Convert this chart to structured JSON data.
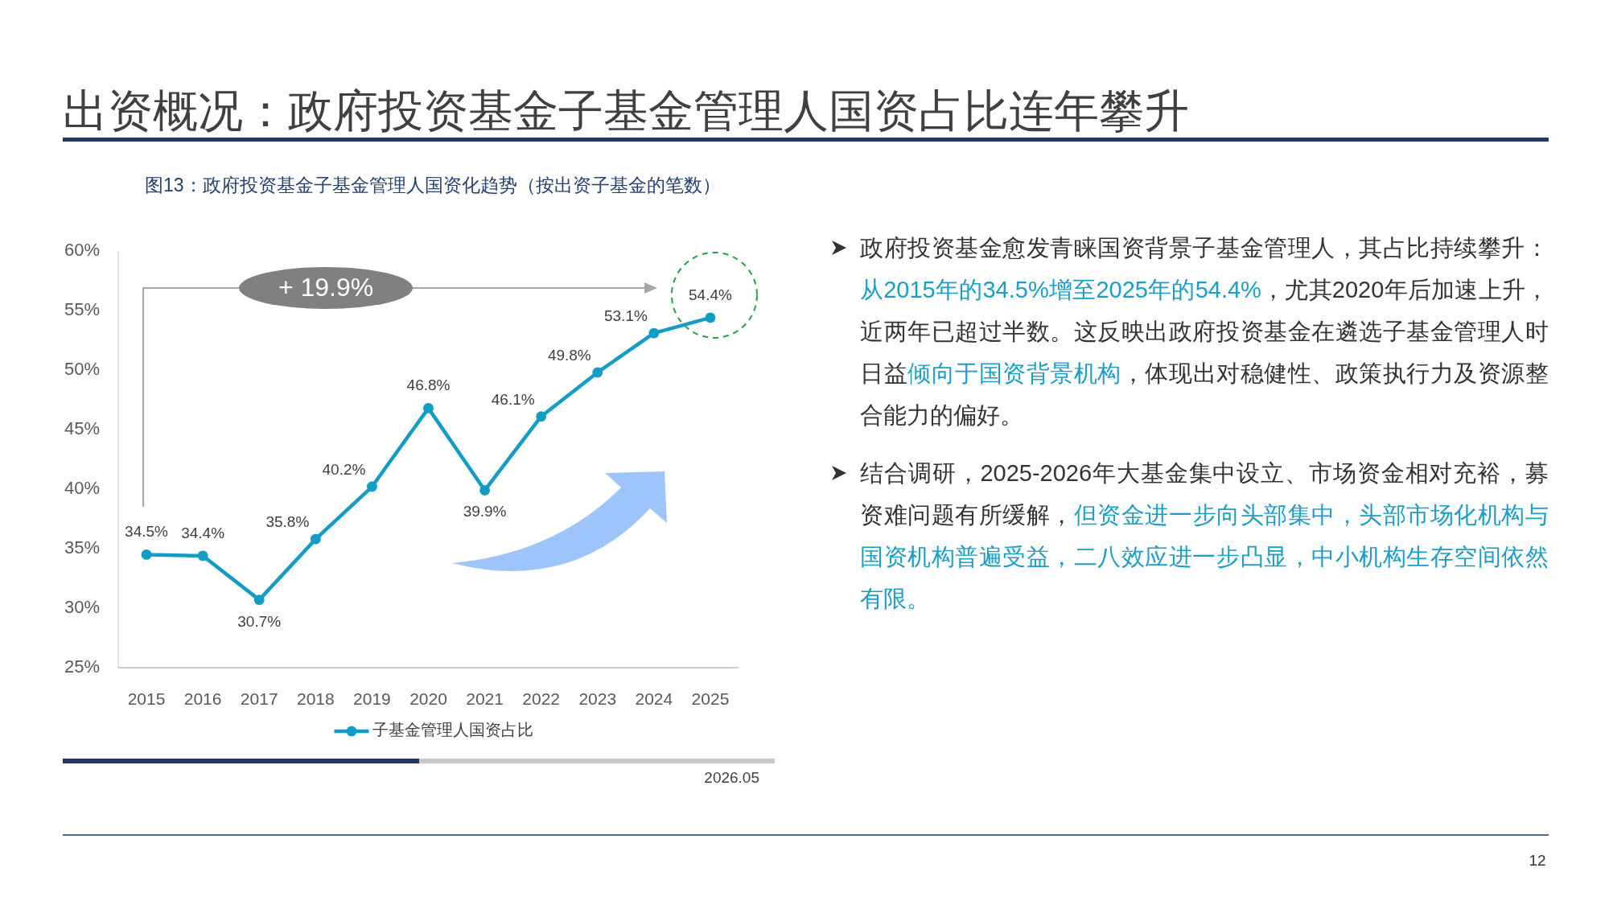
{
  "chart_data": {
    "type": "line",
    "title": "出资概况：政府投资基金子基金管理人国资占比连年攀升",
    "subtitle": "图13：政府投资基金子基金管理人国资化趋势（按出资子基金的笔数）",
    "categories": [
      "2015",
      "2016",
      "2017",
      "2018",
      "2019",
      "2020",
      "2021",
      "2022",
      "2023",
      "2024",
      "2025"
    ],
    "series": [
      {
        "name": "子基金管理人国资占比",
        "color": "#139cc4",
        "values": [
          34.5,
          34.4,
          30.7,
          35.8,
          40.2,
          46.8,
          39.9,
          46.1,
          49.8,
          53.1,
          54.4
        ],
        "value_labels": [
          "34.5%",
          "34.4%",
          "30.7%",
          "35.8%",
          "40.2%",
          "46.8%",
          "39.9%",
          "46.1%",
          "49.8%",
          "53.1%",
          "54.4%"
        ]
      }
    ],
    "ylim": [
      25,
      60
    ],
    "yticks": [
      {
        "value": 25,
        "label": "25%"
      },
      {
        "value": 30,
        "label": "30%"
      },
      {
        "value": 35,
        "label": "35%"
      },
      {
        "value": 40,
        "label": "40%"
      },
      {
        "value": 45,
        "label": "45%"
      },
      {
        "value": 50,
        "label": "50%"
      },
      {
        "value": 55,
        "label": "55%"
      },
      {
        "value": 60,
        "label": "60%"
      }
    ],
    "marker": "circle",
    "line_style": "solid",
    "legend": "bottom",
    "annotations": [
      "+ 19.9%",
      "政府投资基金愈发青睐国资背景子基金管理人，其占比持续攀升：",
      "从2015年的34.5%增至2025年的54.4%",
      "，尤其2020年后加速上升，近两年已超过半数。这反映出政府投资基金在遴选子基金管理人时日益",
      "倾向于国资背景机构",
      "，体现出对稳健性、政策执行力及资源整合能力的偏好。",
      "结合调研，2025-2026年大基金集中设立、市场资金相对充裕，募资难问题有所缓解，",
      "但资金进一步向头部集中，头部市场化机构与国资机构普遍受益，二八效应进一步凸显，中小机构生存空间依然有限。",
      "2026.05",
      "12"
    ]
  }
}
